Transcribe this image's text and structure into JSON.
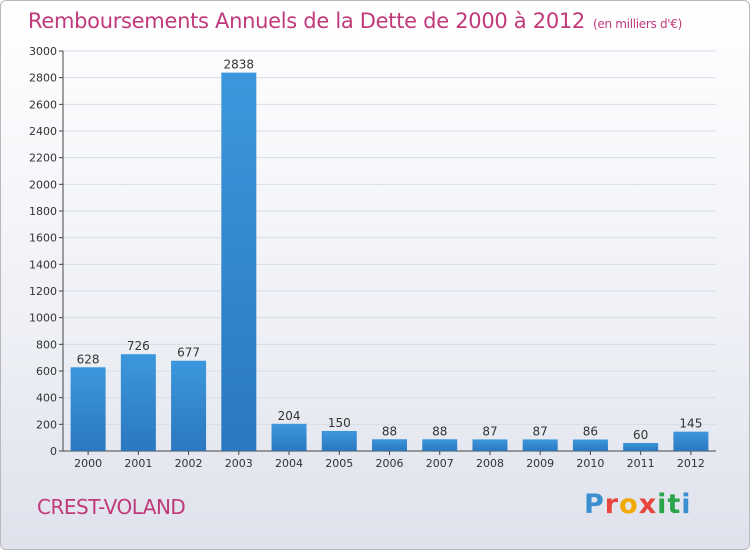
{
  "title": "Remboursements Annuels de la Dette de 2000 à 2012",
  "unit_note": "(en milliers d'€)",
  "commune": "CREST-VOLAND",
  "logo": {
    "letters": [
      "P",
      "r",
      "o",
      "x",
      "i",
      "t",
      "i"
    ],
    "colors": [
      "#3a8fd0",
      "#e8453c",
      "#f2a900",
      "#e8453c",
      "#2aa54a",
      "#2aa54a",
      "#3a8fd0"
    ]
  },
  "colors": {
    "bar": "#3d97dc",
    "bar_dark": "#2b78bf",
    "title": "#c0397a",
    "grid": "#d9dce4",
    "axis": "#444444"
  },
  "chart_data": {
    "type": "bar",
    "categories": [
      "2000",
      "2001",
      "2002",
      "2003",
      "2004",
      "2005",
      "2006",
      "2007",
      "2008",
      "2009",
      "2010",
      "2011",
      "2012"
    ],
    "values": [
      628,
      726,
      677,
      2838,
      204,
      150,
      88,
      88,
      87,
      87,
      86,
      60,
      145
    ],
    "ylim": [
      0,
      3000
    ],
    "yticks": [
      0,
      200,
      400,
      600,
      800,
      1000,
      1200,
      1400,
      1600,
      1800,
      2000,
      2200,
      2400,
      2600,
      2800,
      3000
    ],
    "title": "Remboursements Annuels de la Dette de 2000 à 2012",
    "xlabel": "",
    "ylabel": "",
    "grid": true
  }
}
